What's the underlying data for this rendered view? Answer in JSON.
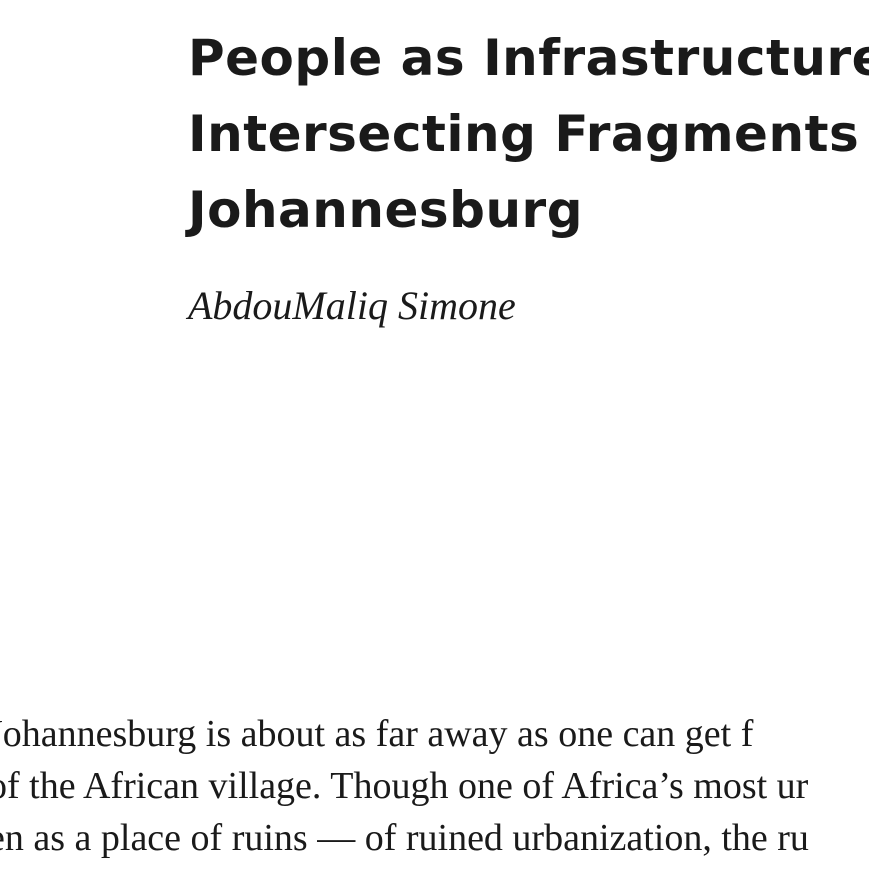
{
  "article": {
    "title_lines": [
      "People as Infrastructure:",
      "Intersecting Fragments in",
      "Johannesburg"
    ],
    "author": "AbdouMaliq Simone",
    "body_lines": [
      " Johannesburg is about as far away as one can get f",
      "of the African village. Though one of Africa’s most ur",
      "en as a place of ruins — of ruined urbanization, the ru"
    ]
  }
}
